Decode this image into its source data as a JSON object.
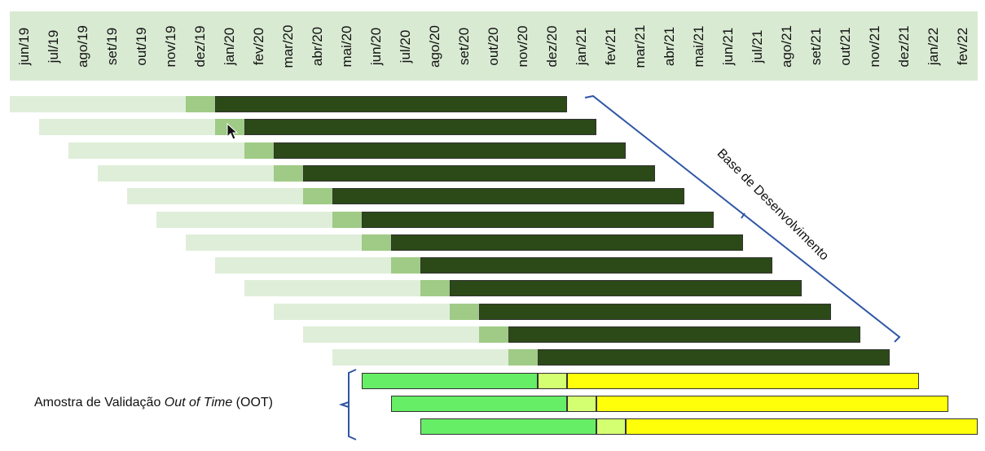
{
  "months": [
    "jun/19",
    "jul/19",
    "ago/19",
    "set/19",
    "out/19",
    "nov/19",
    "dez/19",
    "jan/20",
    "fev/20",
    "mar/20",
    "abr/20",
    "mai/20",
    "jun/20",
    "jul/20",
    "ago/20",
    "set/20",
    "out/20",
    "nov/20",
    "dez/20",
    "jan/21",
    "fev/21",
    "mar/21",
    "abr/21",
    "mai/21",
    "jun/21",
    "jul/21",
    "ago/21",
    "set/21",
    "out/21",
    "nov/21",
    "dez/21",
    "jan/22",
    "fev/22"
  ],
  "development_rows": [
    {
      "start_month": "jun/19",
      "segments": [
        {
          "phase": "history",
          "months": 6
        },
        {
          "phase": "gap",
          "months": 1
        },
        {
          "phase": "performance",
          "months": 12
        }
      ]
    },
    {
      "start_month": "jul/19",
      "segments": [
        {
          "phase": "history",
          "months": 6
        },
        {
          "phase": "gap",
          "months": 1
        },
        {
          "phase": "performance",
          "months": 12
        }
      ]
    },
    {
      "start_month": "ago/19",
      "segments": [
        {
          "phase": "history",
          "months": 6
        },
        {
          "phase": "gap",
          "months": 1
        },
        {
          "phase": "performance",
          "months": 12
        }
      ]
    },
    {
      "start_month": "set/19",
      "segments": [
        {
          "phase": "history",
          "months": 6
        },
        {
          "phase": "gap",
          "months": 1
        },
        {
          "phase": "performance",
          "months": 12
        }
      ]
    },
    {
      "start_month": "out/19",
      "segments": [
        {
          "phase": "history",
          "months": 6
        },
        {
          "phase": "gap",
          "months": 1
        },
        {
          "phase": "performance",
          "months": 12
        }
      ]
    },
    {
      "start_month": "nov/19",
      "segments": [
        {
          "phase": "history",
          "months": 6
        },
        {
          "phase": "gap",
          "months": 1
        },
        {
          "phase": "performance",
          "months": 12
        }
      ]
    },
    {
      "start_month": "dez/19",
      "segments": [
        {
          "phase": "history",
          "months": 6
        },
        {
          "phase": "gap",
          "months": 1
        },
        {
          "phase": "performance",
          "months": 12
        }
      ]
    },
    {
      "start_month": "jan/20",
      "segments": [
        {
          "phase": "history",
          "months": 6
        },
        {
          "phase": "gap",
          "months": 1
        },
        {
          "phase": "performance",
          "months": 12
        }
      ]
    },
    {
      "start_month": "fev/20",
      "segments": [
        {
          "phase": "history",
          "months": 6
        },
        {
          "phase": "gap",
          "months": 1
        },
        {
          "phase": "performance",
          "months": 12
        }
      ]
    },
    {
      "start_month": "mar/20",
      "segments": [
        {
          "phase": "history",
          "months": 6
        },
        {
          "phase": "gap",
          "months": 1
        },
        {
          "phase": "performance",
          "months": 12
        }
      ]
    },
    {
      "start_month": "abr/20",
      "segments": [
        {
          "phase": "history",
          "months": 6
        },
        {
          "phase": "gap",
          "months": 1
        },
        {
          "phase": "performance",
          "months": 12
        }
      ]
    },
    {
      "start_month": "mai/20",
      "segments": [
        {
          "phase": "history",
          "months": 6
        },
        {
          "phase": "gap",
          "months": 1
        },
        {
          "phase": "performance",
          "months": 12
        }
      ]
    }
  ],
  "validation_rows": [
    {
      "start_month": "jun/20",
      "segments": [
        {
          "phase": "oot_history",
          "months": 6
        },
        {
          "phase": "oot_gap",
          "months": 1
        },
        {
          "phase": "oot_performance",
          "months": 12
        }
      ]
    },
    {
      "start_month": "jul/20",
      "segments": [
        {
          "phase": "oot_history",
          "months": 6
        },
        {
          "phase": "oot_gap",
          "months": 1
        },
        {
          "phase": "oot_performance",
          "months": 12
        }
      ]
    },
    {
      "start_month": "ago/20",
      "segments": [
        {
          "phase": "oot_history",
          "months": 6
        },
        {
          "phase": "oot_gap",
          "months": 1
        },
        {
          "phase": "oot_performance",
          "months": 12
        }
      ]
    }
  ],
  "colors": {
    "header_bg": "#d9ead3",
    "history": "#dfeed9",
    "gap": "#9fcb86",
    "performance": "#2b4a17",
    "oot_history": "#66ee66",
    "oot_gap": "#d4ff70",
    "oot_performance": "#ffff0a",
    "bracket": "#2f56a6"
  },
  "labels": {
    "development": "Base de Desenvolvimento",
    "validation_prefix": "Amostra de Validação ",
    "validation_italic": "Out of Time",
    "validation_suffix": " (OOT)"
  }
}
